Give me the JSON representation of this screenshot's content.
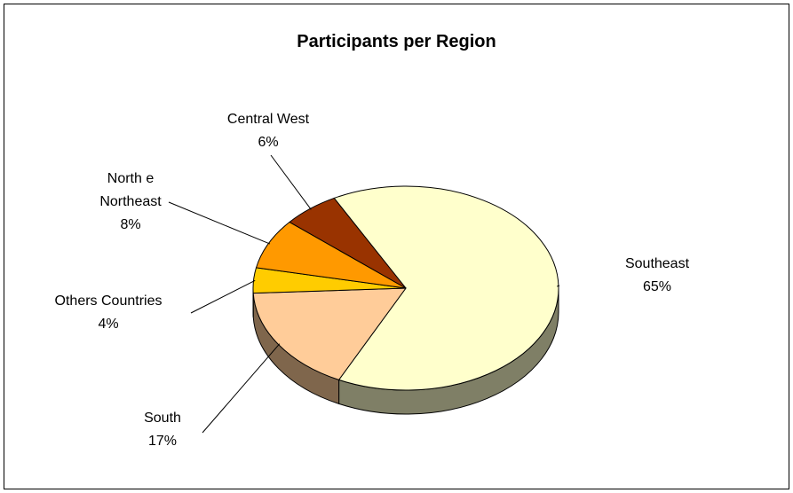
{
  "chart_data": {
    "type": "pie",
    "title": "Participants per Region",
    "categories": [
      "Southeast",
      "South",
      "Others Countries",
      "North e Northeast",
      "Central West"
    ],
    "values": [
      65,
      17,
      4,
      8,
      6
    ],
    "value_labels": [
      "65%",
      "17%",
      "4%",
      "8%",
      "6%"
    ],
    "colors": [
      "#FFFFCC",
      "#FFCC99",
      "#FFCC00",
      "#FF9900",
      "#993300"
    ]
  }
}
